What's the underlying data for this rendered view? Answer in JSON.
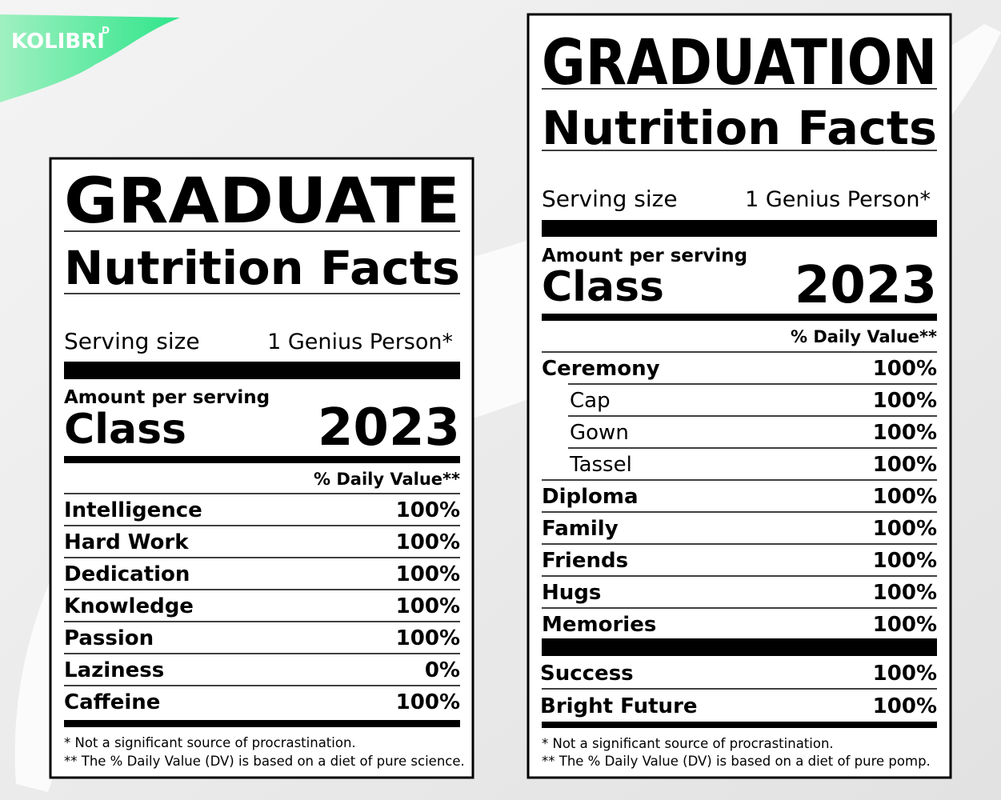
{
  "logo": {
    "text": "KOLIBRI",
    "mark": "D"
  },
  "labels": [
    {
      "title": "GRADUATE",
      "subtitle": "Nutrition Facts",
      "serving_label": "Serving size",
      "serving_value": "1 Genius Person*",
      "amount": "Amount per serving",
      "class_label": "Class",
      "class_value": "2023",
      "dv_header": "% Daily Value**",
      "rows": [
        {
          "name": "Intelligence",
          "value": "100%"
        },
        {
          "name": "Hard Work",
          "value": "100%"
        },
        {
          "name": "Dedication",
          "value": "100%"
        },
        {
          "name": "Knowledge",
          "value": "100%"
        },
        {
          "name": "Passion",
          "value": "100%"
        },
        {
          "name": "Laziness",
          "value": "0%"
        },
        {
          "name": "Caffeine",
          "value": "100%"
        }
      ],
      "footnotes": [
        "* Not a significant source of procrastination.",
        "** The % Daily Value (DV) is based on a diet of pure science."
      ]
    },
    {
      "title": "GRADUATION",
      "subtitle": "Nutrition Facts",
      "serving_label": "Serving size",
      "serving_value": "1 Genius Person*",
      "amount": "Amount per serving",
      "class_label": "Class",
      "class_value": "2023",
      "dv_header": "% Daily Value**",
      "rows": [
        {
          "name": "Ceremony",
          "value": "100%",
          "items": [
            {
              "name": "Cap",
              "value": "100%"
            },
            {
              "name": "Gown",
              "value": "100%"
            },
            {
              "name": "Tassel",
              "value": "100%"
            }
          ]
        },
        {
          "name": "Diploma",
          "value": "100%"
        },
        {
          "name": "Family",
          "value": "100%"
        },
        {
          "name": "Friends",
          "value": "100%"
        },
        {
          "name": "Hugs",
          "value": "100%"
        },
        {
          "name": "Memories",
          "value": "100%"
        }
      ],
      "extra_rows": [
        {
          "name": "Success",
          "value": "100%"
        },
        {
          "name": "Bright Future",
          "value": "100%"
        }
      ],
      "footnotes": [
        "* Not a significant source of procrastination.",
        "** The % Daily Value (DV) is based on a diet of pure pomp."
      ]
    }
  ]
}
